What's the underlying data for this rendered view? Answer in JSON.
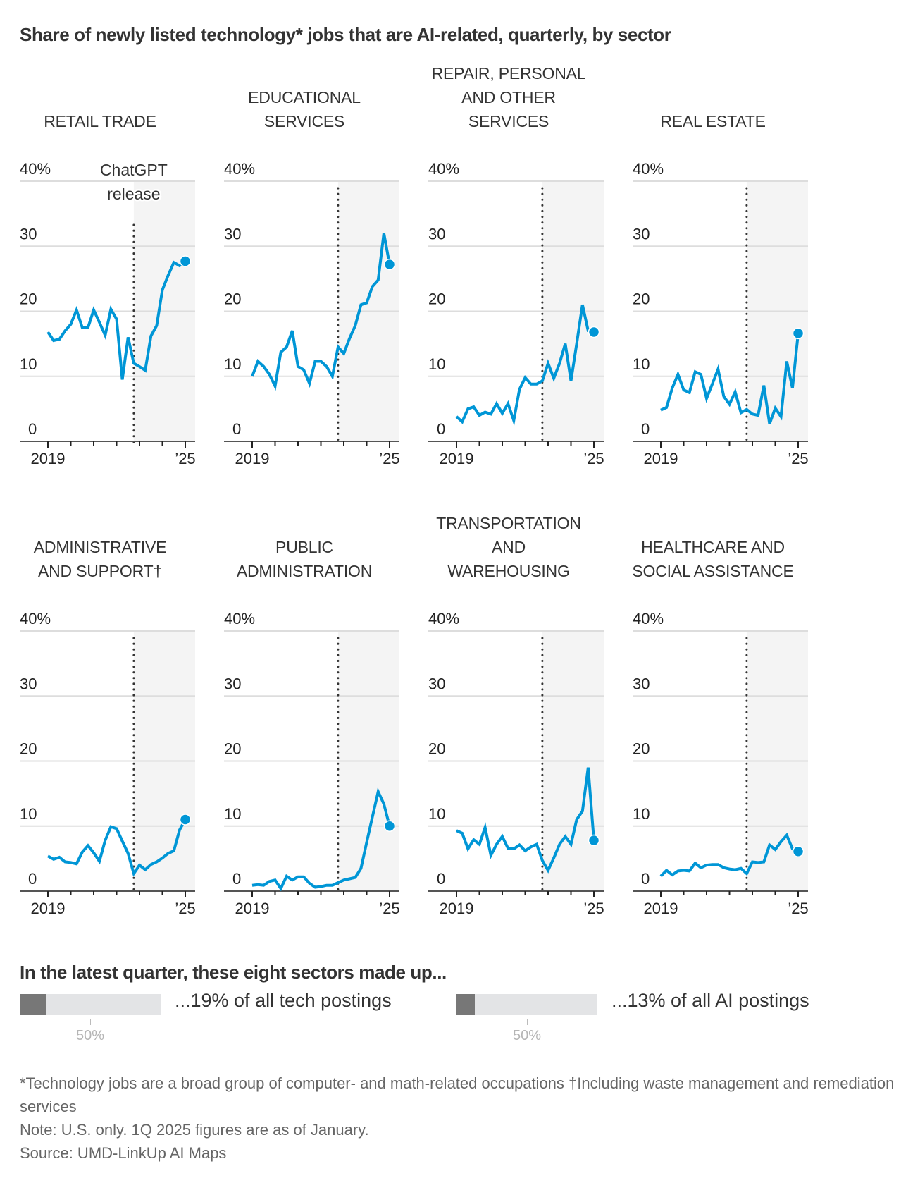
{
  "title": "Share of newly listed technology* jobs that are AI-related, quarterly, by sector",
  "colors": {
    "line": "#0096d6",
    "shade": "#f4f4f4",
    "grid": "#dddddd",
    "axis": "#555555",
    "annotation_line": "#333333",
    "bar_fill": "#777777",
    "bar_bg": "#e3e4e6"
  },
  "annotation": {
    "line1": "ChatGPT",
    "line2": "release",
    "at_quarter_index": 15
  },
  "chart_data": [
    {
      "type": "line",
      "title": "RETAIL TRADE",
      "title_lines": [
        "RETAIL TRADE"
      ],
      "x_start": "2019 Q1",
      "x_end": "2025 Q1",
      "xtick_labels": [
        "2019",
        "’25"
      ],
      "yticks": [
        0,
        10,
        20,
        30,
        40
      ],
      "ytick_labels": [
        "0",
        "10",
        "20",
        "30",
        "40%"
      ],
      "ylim": [
        0,
        40
      ],
      "values": [
        16.8,
        15.5,
        15.7,
        17.0,
        18.0,
        20.2,
        17.5,
        17.5,
        20.2,
        18.3,
        16.3,
        20.3,
        18.8,
        9.5,
        16.0,
        12.0,
        11.5,
        10.9,
        16.2,
        17.8,
        23.3,
        25.5,
        27.5,
        27.0,
        27.7
      ],
      "show_annotation": true
    },
    {
      "type": "line",
      "title": "EDUCATIONAL SERVICES",
      "title_lines": [
        "EDUCATIONAL",
        "SERVICES"
      ],
      "x_start": "2019 Q1",
      "x_end": "2025 Q1",
      "xtick_labels": [
        "2019",
        "’25"
      ],
      "yticks": [
        0,
        10,
        20,
        30,
        40
      ],
      "ytick_labels": [
        "0",
        "10",
        "20",
        "30",
        "40%"
      ],
      "ylim": [
        0,
        40
      ],
      "values": [
        10.0,
        12.3,
        11.5,
        10.3,
        8.5,
        13.7,
        14.5,
        17.0,
        11.5,
        11.0,
        8.9,
        12.3,
        12.3,
        11.5,
        10.0,
        14.5,
        13.5,
        15.8,
        17.8,
        21.0,
        21.3,
        23.8,
        24.8,
        32.0,
        27.2
      ],
      "show_annotation": false
    },
    {
      "type": "line",
      "title": "REPAIR, PERSONAL AND OTHER SERVICES",
      "title_lines": [
        "REPAIR, PERSONAL",
        "AND OTHER",
        "SERVICES"
      ],
      "x_start": "2019 Q1",
      "x_end": "2025 Q1",
      "xtick_labels": [
        "2019",
        "’25"
      ],
      "yticks": [
        0,
        10,
        20,
        30,
        40
      ],
      "ytick_labels": [
        "0",
        "10",
        "20",
        "30",
        "40%"
      ],
      "ylim": [
        0,
        40
      ],
      "values": [
        3.8,
        3.0,
        5.0,
        5.3,
        4.0,
        4.5,
        4.2,
        5.8,
        4.3,
        5.8,
        3.2,
        8.0,
        9.8,
        8.8,
        8.8,
        9.3,
        12.0,
        9.7,
        12.0,
        15.0,
        9.3,
        15.0,
        21.0,
        17.0,
        16.8
      ],
      "show_annotation": false
    },
    {
      "type": "line",
      "title": "REAL ESTATE",
      "title_lines": [
        "REAL ESTATE"
      ],
      "x_start": "2019 Q1",
      "x_end": "2025 Q1",
      "xtick_labels": [
        "2019",
        "’25"
      ],
      "yticks": [
        0,
        10,
        20,
        30,
        40
      ],
      "ytick_labels": [
        "0",
        "10",
        "20",
        "30",
        "40%"
      ],
      "ylim": [
        0,
        40
      ],
      "values": [
        4.8,
        5.2,
        8.2,
        10.3,
        7.9,
        7.5,
        10.7,
        10.3,
        6.6,
        8.8,
        11.1,
        6.9,
        5.7,
        7.6,
        4.4,
        4.9,
        4.2,
        4.0,
        8.6,
        2.7,
        5.1,
        3.8,
        12.3,
        8.2,
        16.6
      ],
      "show_annotation": false
    },
    {
      "type": "line",
      "title": "ADMINISTRATIVE AND SUPPORT†",
      "title_lines": [
        "ADMINISTRATIVE",
        "AND SUPPORT†"
      ],
      "x_start": "2019 Q1",
      "x_end": "2025 Q1",
      "xtick_labels": [
        "2019",
        "’25"
      ],
      "yticks": [
        0,
        10,
        20,
        30,
        40
      ],
      "ytick_labels": [
        "0",
        "10",
        "20",
        "30",
        "40%"
      ],
      "ylim": [
        0,
        40
      ],
      "values": [
        5.4,
        4.9,
        5.2,
        4.5,
        4.4,
        4.2,
        6.0,
        7.0,
        5.9,
        4.6,
        7.8,
        9.9,
        9.6,
        7.7,
        5.8,
        2.7,
        4.0,
        3.3,
        4.1,
        4.5,
        5.1,
        5.8,
        6.2,
        9.4,
        11.0
      ],
      "show_annotation": false
    },
    {
      "type": "line",
      "title": "PUBLIC ADMINISTRATION",
      "title_lines": [
        "PUBLIC",
        "ADMINISTRATION"
      ],
      "x_start": "2019 Q1",
      "x_end": "2025 Q1",
      "xtick_labels": [
        "2019",
        "’25"
      ],
      "yticks": [
        0,
        10,
        20,
        30,
        40
      ],
      "ytick_labels": [
        "0",
        "10",
        "20",
        "30",
        "40%"
      ],
      "ylim": [
        0,
        40
      ],
      "values": [
        0.9,
        1.0,
        0.9,
        1.5,
        1.7,
        0.4,
        2.3,
        1.7,
        2.2,
        2.2,
        1.2,
        0.6,
        0.7,
        0.9,
        0.9,
        1.3,
        1.7,
        1.9,
        2.1,
        3.5,
        7.5,
        11.4,
        15.3,
        13.4,
        10.0
      ],
      "show_annotation": false
    },
    {
      "type": "line",
      "title": "TRANSPORTATION AND WAREHOUSING",
      "title_lines": [
        "TRANSPORTATION",
        "AND",
        "WAREHOUSING"
      ],
      "x_start": "2019 Q1",
      "x_end": "2025 Q1",
      "xtick_labels": [
        "2019",
        "’25"
      ],
      "yticks": [
        0,
        10,
        20,
        30,
        40
      ],
      "ytick_labels": [
        "0",
        "10",
        "20",
        "30",
        "40%"
      ],
      "ylim": [
        0,
        40
      ],
      "values": [
        9.3,
        8.9,
        6.5,
        7.9,
        7.2,
        9.8,
        5.5,
        7.2,
        8.4,
        6.6,
        6.5,
        7.1,
        6.2,
        6.8,
        7.2,
        4.7,
        3.2,
        5.1,
        7.2,
        8.4,
        7.2,
        11.0,
        12.3,
        19.0,
        7.8
      ],
      "show_annotation": false
    },
    {
      "type": "line",
      "title": "HEALTHCARE AND SOCIAL ASSISTANCE",
      "title_lines": [
        "HEALTHCARE AND",
        "SOCIAL ASSISTANCE"
      ],
      "x_start": "2019 Q1",
      "x_end": "2025 Q1",
      "xtick_labels": [
        "2019",
        "’25"
      ],
      "yticks": [
        0,
        10,
        20,
        30,
        40
      ],
      "ytick_labels": [
        "0",
        "10",
        "20",
        "30",
        "40%"
      ],
      "ylim": [
        0,
        40
      ],
      "values": [
        2.3,
        3.2,
        2.5,
        3.1,
        3.2,
        3.1,
        4.3,
        3.6,
        4.0,
        4.1,
        4.1,
        3.6,
        3.4,
        3.3,
        3.5,
        2.7,
        4.5,
        4.4,
        4.5,
        7.1,
        6.4,
        7.6,
        8.6,
        6.5,
        6.1
      ],
      "show_annotation": false
    }
  ],
  "summary": {
    "title": "In the latest quarter, these eight sectors made up...",
    "bars": [
      {
        "label": "...19% of all tech postings",
        "value_percent": 19,
        "scale_max_percent": 100,
        "tick_label": "50%",
        "tick_percent": 50
      },
      {
        "label": "...13% of all AI postings",
        "value_percent": 13,
        "scale_max_percent": 100,
        "tick_label": "50%",
        "tick_percent": 50
      }
    ]
  },
  "footnotes": {
    "definition": "*Technology jobs are a broad group of computer- and math-related occupations †Including waste management and remediation services",
    "note": "Note: U.S. only. 1Q 2025 figures are as of January.",
    "source": "Source: UMD-LinkUp AI Maps"
  }
}
